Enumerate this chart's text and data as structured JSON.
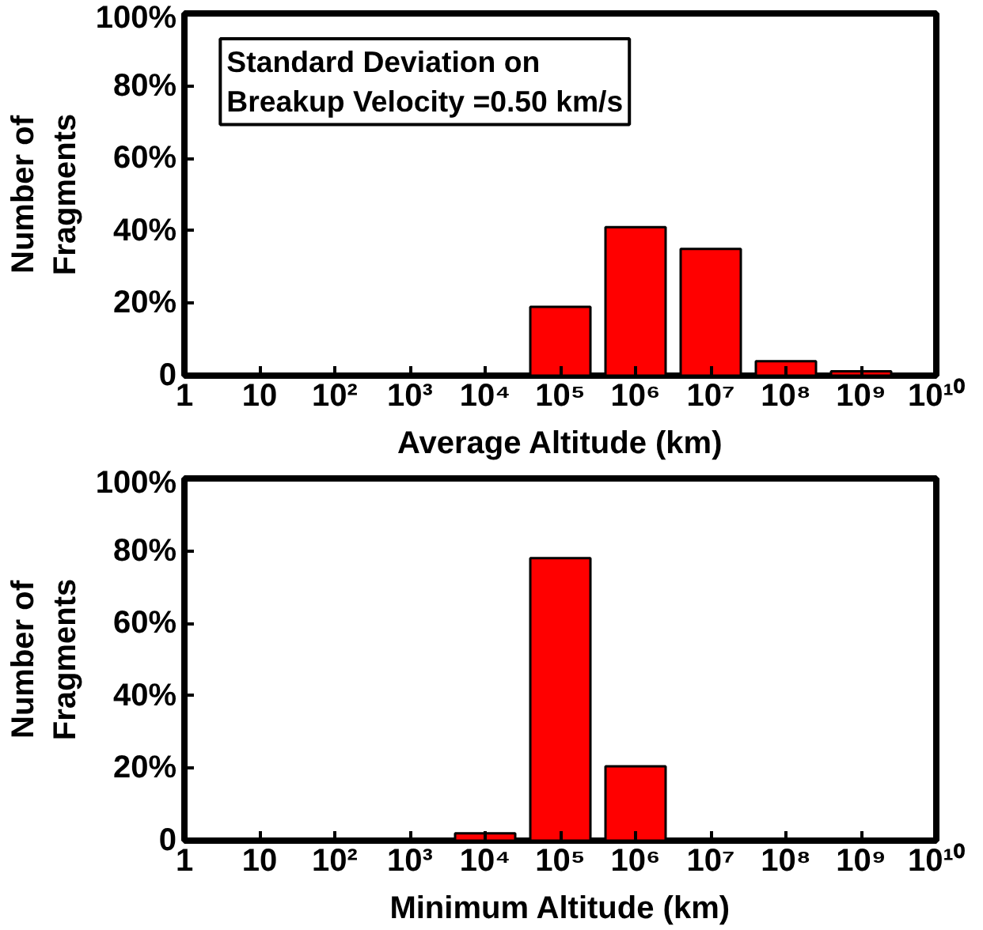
{
  "chart_data": [
    {
      "type": "bar",
      "log": "x",
      "x": [
        100000,
        1000000,
        10000000,
        100000000,
        1000000000
      ],
      "values": [
        19,
        41,
        35,
        4,
        1.2
      ],
      "color": "#ff0000",
      "xlabel": "Average Altitude (km)",
      "ylabel": "Number of\nFragments",
      "xlim": [
        1,
        10000000000
      ],
      "ylim": [
        0,
        100
      ],
      "xticks": [
        {
          "value": 1,
          "label": "1"
        },
        {
          "value": 10,
          "label": "10"
        },
        {
          "value": 100,
          "label": "10²"
        },
        {
          "value": 1000,
          "label": "10³"
        },
        {
          "value": 10000,
          "label": "10⁴"
        },
        {
          "value": 100000,
          "label": "10⁵"
        },
        {
          "value": 1000000,
          "label": "10⁶"
        },
        {
          "value": 10000000,
          "label": "10⁷"
        },
        {
          "value": 100000000,
          "label": "10⁸"
        },
        {
          "value": 1000000000,
          "label": "10⁹"
        },
        {
          "value": 10000000000,
          "label": "10¹⁰"
        }
      ],
      "yticks": [
        0,
        {
          "value": 20,
          "label": "20%"
        },
        {
          "value": 40,
          "label": "40%"
        },
        {
          "value": 60,
          "label": "60%"
        },
        {
          "value": 80,
          "label": "80%"
        },
        {
          "value": 100,
          "label": "100%"
        }
      ],
      "annotations": [
        "Standard Deviation on\nBreakup Velocity =0.50 km/s"
      ]
    },
    {
      "type": "bar",
      "log": "x",
      "x": [
        10000,
        100000,
        1000000
      ],
      "values": [
        2,
        78,
        20.5
      ],
      "color": "#ff0000",
      "xlabel": "Minimum Altitude (km)",
      "ylabel": "Number of\nFragments",
      "xlim": [
        1,
        10000000000
      ],
      "ylim": [
        0,
        100
      ],
      "xticks": [
        {
          "value": 1,
          "label": "1"
        },
        {
          "value": 10,
          "label": "10"
        },
        {
          "value": 100,
          "label": "10²"
        },
        {
          "value": 1000,
          "label": "10³"
        },
        {
          "value": 10000,
          "label": "10⁴"
        },
        {
          "value": 100000,
          "label": "10⁵"
        },
        {
          "value": 1000000,
          "label": "10⁶"
        },
        {
          "value": 10000000,
          "label": "10⁷"
        },
        {
          "value": 100000000,
          "label": "10⁸"
        },
        {
          "value": 1000000000,
          "label": "10⁹"
        },
        {
          "value": 10000000000,
          "label": "10¹⁰"
        }
      ],
      "yticks": [
        0,
        {
          "value": 20,
          "label": "20%"
        },
        {
          "value": 40,
          "label": "40%"
        },
        {
          "value": 60,
          "label": "60%"
        },
        {
          "value": 80,
          "label": "80%"
        },
        {
          "value": 100,
          "label": "100%"
        }
      ]
    }
  ]
}
